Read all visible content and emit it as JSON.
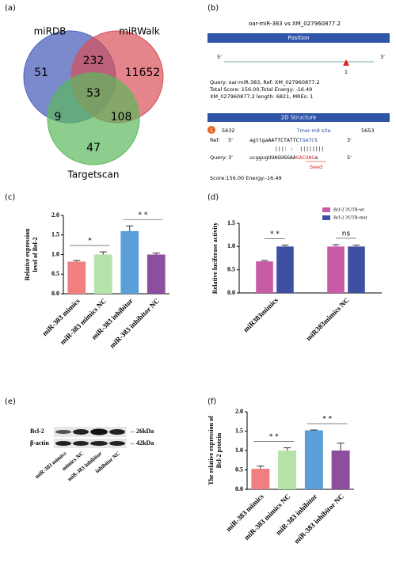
{
  "figure_labels": [
    "(a)",
    "(b)",
    "(c)",
    "(d)",
    "(e)",
    "(f)"
  ],
  "venn": {
    "sets": [
      "miRDB",
      "miRWalk",
      "Targetscan"
    ],
    "counts": [
      51,
      232,
      11652,
      53,
      9,
      108,
      47
    ]
  },
  "alignment": {
    "title": "oar-miR-383 vs XM_027960877.2",
    "position_header": "Position",
    "five_prime": "5'",
    "three_prime": "3'",
    "site_number": "1",
    "info": [
      "Query: oar-miR-383, Ref: XM_027960877.2",
      "Total Score: 156.00,Total Energy: -16.49",
      "XM_027960877.2 length: 6821, MREs: 1"
    ],
    "structure_header": "2D Structure",
    "site_start": 5632,
    "site_type": "7mer-m8 site",
    "site_end": 5653,
    "ref_label": "Ref:",
    "ref_seq": [
      "agttgaAATTCTATTC",
      "TGATC",
      "t"
    ],
    "pairing": "|||: :  ||||||||",
    "query_label": "Query:",
    "query_seq": [
      "ucggugUUAGUGGAA",
      "GACUAG",
      "a"
    ],
    "seed": "Seed",
    "score": "Score:156.00 Energy:-16.49"
  },
  "blot": {
    "proteins": [
      "Bcl-2",
      "β-actin"
    ],
    "sizes": [
      "←26kDa",
      "←42kDa"
    ],
    "lanes": [
      "miR-383 mimics",
      "mimics NC",
      "miR-383 inhibitor",
      "inhibitor NC"
    ]
  },
  "chart_data": [
    {
      "type": "bar",
      "ylabel": [
        "Relative expression",
        "level of Bel-2"
      ],
      "categories": [
        "miR-383 mimics",
        "miR-383 mimics NC",
        "miR-383 inhibitor",
        "miR-383 inhibitor NC"
      ],
      "values": [
        0.82,
        1.0,
        1.6,
        1.0
      ],
      "errors": [
        0.03,
        0.07,
        0.13,
        0.04
      ],
      "colors": [
        "#f07f7f",
        "#b5e2a8",
        "#5b9fd8",
        "#8e4e9e"
      ],
      "ylim": [
        0,
        2.0
      ],
      "yticks": [
        {
          "value": 0,
          "label": "0.0"
        },
        {
          "value": 0.5,
          "label": "0.5"
        },
        {
          "value": 1.0,
          "label": "1.0"
        },
        {
          "value": 1.5,
          "label": "1.5"
        },
        {
          "value": 2.0,
          "label": "2.0"
        }
      ],
      "annotations": [
        "*",
        "* *"
      ]
    },
    {
      "type": "grouped_bar",
      "ylabel": [
        "Relative luciferase activity"
      ],
      "categories": [
        "miR383mimics",
        "miR383mimics NC"
      ],
      "series": [
        {
          "name": "Bcl-2 3'UTR-wt",
          "color": "#c85aa6",
          "values": [
            0.68,
            1.0
          ],
          "errors": [
            0.02,
            0.04
          ]
        },
        {
          "name": "Bcl-2 3'UTR-mut",
          "color": "#3f50a3",
          "values": [
            1.0,
            1.0
          ],
          "errors": [
            0.03,
            0.03
          ]
        }
      ],
      "ylim": [
        0,
        1.5
      ],
      "yticks": [
        {
          "value": 0,
          "label": "0.0"
        },
        {
          "value": 0.5,
          "label": "0.5"
        },
        {
          "value": 1.0,
          "label": "1.0"
        },
        {
          "value": 1.5,
          "label": "1.5"
        }
      ],
      "legend": "upper right",
      "annotations": [
        "* *",
        "ns"
      ]
    },
    {
      "type": "bar",
      "ylabel": [
        "The relative expression of",
        "Bcl-2 protein"
      ],
      "categories": [
        "miR-383 mimics",
        "miR-383 mimics NC",
        "miR-383 inhibitor",
        "miR-383 inhibitor NC"
      ],
      "values": [
        0.53,
        1.0,
        1.52,
        1.0
      ],
      "errors": [
        0.07,
        0.07,
        0.01,
        0.19
      ],
      "colors": [
        "#f07f7f",
        "#b5e2a8",
        "#5b9fd8",
        "#8e4e9e"
      ],
      "ylim": [
        0,
        2.0
      ],
      "yticks": [
        {
          "value": 0,
          "label": "0.0"
        },
        {
          "value": 0.5,
          "label": "0.5"
        },
        {
          "value": 1.0,
          "label": "1.0"
        },
        {
          "value": 1.5,
          "label": "1.5"
        },
        {
          "value": 2.0,
          "label": "2.0"
        }
      ],
      "annotations": [
        "* *",
        "* *"
      ]
    }
  ]
}
